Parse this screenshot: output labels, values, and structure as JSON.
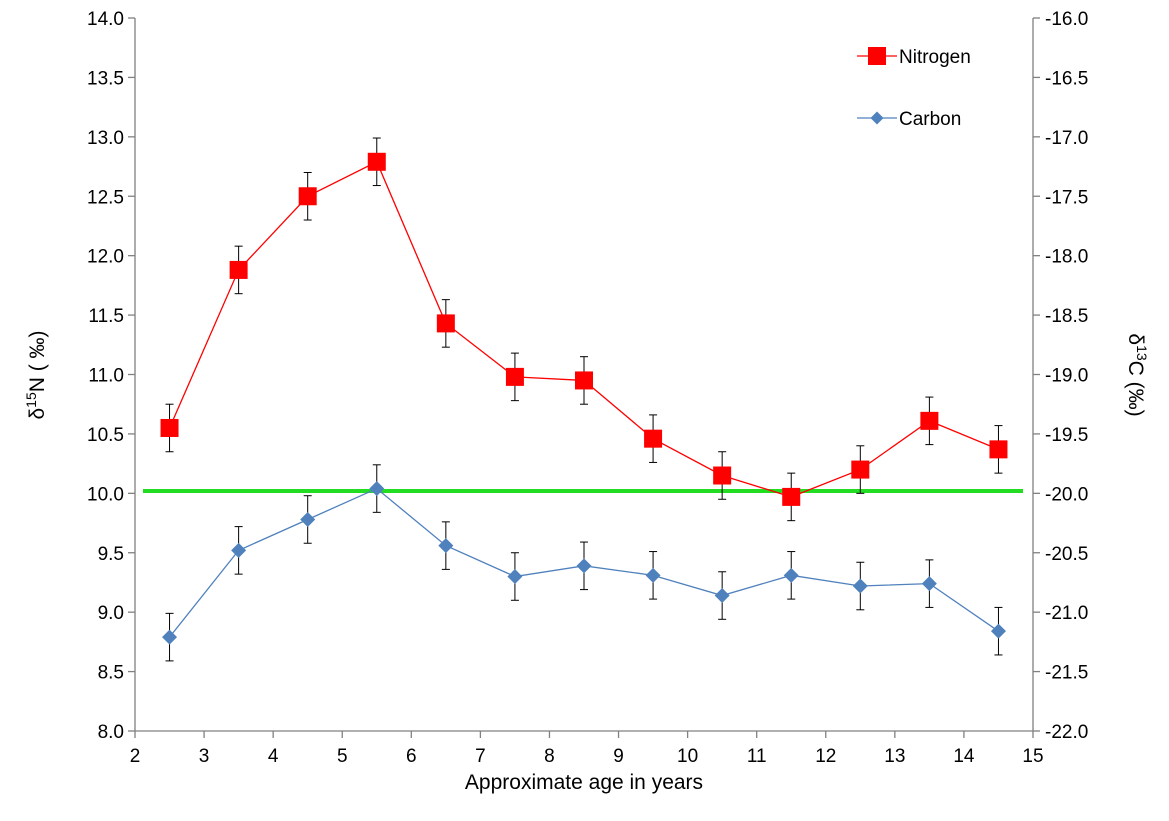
{
  "chart_data": {
    "type": "line",
    "xlabel": "Approximate age in years",
    "ylabel_left": {
      "prefix": "δ",
      "sup": "15",
      "main": "N ( ‰)"
    },
    "ylabel_right": {
      "prefix": "δ",
      "sup": "13",
      "main": "C (‰)"
    },
    "xlim": [
      2,
      15
    ],
    "ylim_left": [
      8.0,
      14.0
    ],
    "ylim_right": [
      -22.0,
      -16.0
    ],
    "x_ticks": [
      "2",
      "3",
      "4",
      "5",
      "6",
      "7",
      "8",
      "9",
      "10",
      "11",
      "12",
      "13",
      "14",
      "15"
    ],
    "y_left_ticks": [
      "8.0",
      "8.5",
      "9.0",
      "9.5",
      "10.0",
      "10.5",
      "11.0",
      "11.5",
      "12.0",
      "12.5",
      "13.0",
      "13.5",
      "14.0"
    ],
    "y_right_ticks": [
      "-22.0",
      "-21.5",
      "-21.0",
      "-20.5",
      "-20.0",
      "-19.5",
      "-19.0",
      "-18.5",
      "-18.0",
      "-17.5",
      "-17.0",
      "-16.5",
      "-16.0"
    ],
    "x": [
      2.5,
      3.5,
      4.5,
      5.5,
      6.5,
      7.5,
      8.5,
      9.5,
      10.5,
      11.5,
      12.5,
      13.5,
      14.5
    ],
    "series": [
      {
        "name": "Nitrogen",
        "axis": "left",
        "marker": "square",
        "color": "#ff0000",
        "values": [
          10.55,
          11.88,
          12.5,
          12.79,
          11.43,
          10.98,
          10.95,
          10.46,
          10.15,
          9.97,
          10.2,
          10.61,
          10.37
        ],
        "error": 0.2
      },
      {
        "name": "Carbon",
        "axis": "right",
        "marker": "diamond",
        "color": "#4f81bd",
        "values": [
          -21.21,
          -20.48,
          -20.22,
          -19.96,
          -20.44,
          -20.7,
          -20.61,
          -20.69,
          -20.86,
          -20.69,
          -20.78,
          -20.76,
          -21.16
        ],
        "error": 0.2
      }
    ],
    "reference_line": {
      "axis": "left",
      "value": 10.02,
      "color": "#22dd22"
    },
    "legend_position": "top-right",
    "grid": false
  }
}
